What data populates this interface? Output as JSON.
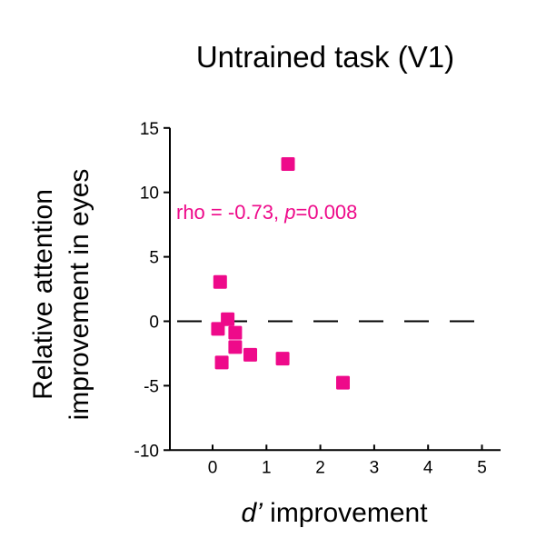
{
  "chart_data": {
    "type": "scatter",
    "title": "Untrained task (V1)",
    "xlabel_italic": "d’",
    "xlabel_rest": " improvement",
    "ylabel_line1": "Relative attention",
    "ylabel_line2": "improvement in eyes",
    "xlim": [
      -0.7,
      5.3
    ],
    "ylim": [
      -10,
      15
    ],
    "xticks": [
      0,
      1,
      2,
      3,
      4,
      5
    ],
    "yticks": [
      15,
      10,
      5,
      0,
      -5,
      -10
    ],
    "grid": false,
    "reference_line": {
      "y": 0,
      "style": "dashed"
    },
    "annotation": {
      "prefix": "rho = -0.73, ",
      "p_label": "p",
      "suffix": "=0.008"
    },
    "marker_color": "#EE0A8A",
    "points": [
      {
        "x": 1.4,
        "y": 12.2
      },
      {
        "x": 0.14,
        "y": 3.05
      },
      {
        "x": 0.28,
        "y": 0.16
      },
      {
        "x": 0.1,
        "y": -0.59
      },
      {
        "x": 0.42,
        "y": -0.89
      },
      {
        "x": 0.42,
        "y": -2.0
      },
      {
        "x": 0.7,
        "y": -2.6
      },
      {
        "x": 0.17,
        "y": -3.2
      },
      {
        "x": 1.3,
        "y": -2.9
      },
      {
        "x": 2.42,
        "y": -4.77
      }
    ]
  }
}
